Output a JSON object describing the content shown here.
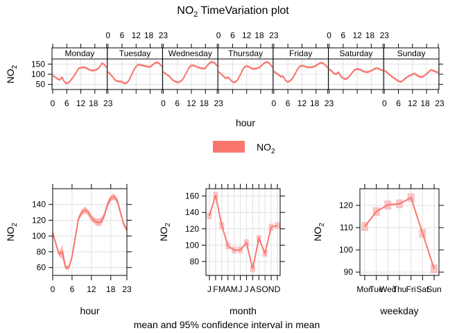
{
  "title": {
    "main": "NO",
    "sub": "2",
    "rest": " TimeVariation plot"
  },
  "footer_note": "mean and 95% confidence interval in mean",
  "colors": {
    "line": "#F8766D",
    "ci": "#F9B8B8",
    "grid": "#E0E0E0",
    "axis": "#000000"
  },
  "legend": {
    "label_main": "NO",
    "label_sub": "2",
    "swatch_color": "#F8766D"
  },
  "chart_data": [
    {
      "type": "line",
      "name": "hour-by-weekday",
      "title": "NO2 TimeVariation plot",
      "xlabel": "hour",
      "ylabel": "NO2",
      "panels": [
        "Monday",
        "Tuesday",
        "Wednesday",
        "Thursday",
        "Friday",
        "Saturday",
        "Sunday"
      ],
      "x_ticks": [
        0,
        6,
        12,
        18,
        23
      ],
      "y_ticks": [
        50,
        100,
        150
      ],
      "ylim": [
        25,
        175
      ],
      "ci_halfwidth": 6,
      "series": [
        {
          "name": "Monday",
          "values": [
            95,
            86,
            78,
            72,
            85,
            62,
            55,
            60,
            75,
            90,
            108,
            128,
            132,
            134,
            132,
            126,
            121,
            118,
            120,
            124,
            135,
            154,
            148,
            132
          ]
        },
        {
          "name": "Tuesday",
          "values": [
            112,
            100,
            88,
            72,
            66,
            64,
            63,
            55,
            58,
            70,
            95,
            120,
            138,
            148,
            146,
            142,
            140,
            137,
            136,
            145,
            155,
            158,
            152,
            138
          ]
        },
        {
          "name": "Wednesday",
          "values": [
            112,
            102,
            95,
            85,
            72,
            65,
            60,
            63,
            70,
            88,
            110,
            132,
            144,
            142,
            138,
            133,
            130,
            128,
            130,
            145,
            158,
            160,
            155,
            140
          ]
        },
        {
          "name": "Thursday",
          "values": [
            112,
            102,
            92,
            80,
            85,
            74,
            62,
            60,
            70,
            90,
            115,
            135,
            140,
            137,
            128,
            127,
            128,
            131,
            138,
            150,
            158,
            160,
            150,
            135
          ]
        },
        {
          "name": "Friday",
          "values": [
            115,
            105,
            98,
            88,
            90,
            70,
            62,
            68,
            80,
            100,
            122,
            138,
            142,
            140,
            135,
            134,
            134,
            137,
            142,
            150,
            156,
            154,
            145,
            132
          ]
        },
        {
          "name": "Saturday",
          "values": [
            125,
            116,
            105,
            100,
            110,
            90,
            80,
            76,
            82,
            95,
            110,
            122,
            126,
            124,
            118,
            113,
            110,
            112,
            118,
            124,
            130,
            128,
            122,
            118
          ]
        },
        {
          "name": "Sunday",
          "values": [
            118,
            110,
            100,
            90,
            82,
            74,
            66,
            62,
            70,
            80,
            88,
            94,
            100,
            102,
            94,
            88,
            86,
            92,
            102,
            112,
            122,
            116,
            112,
            108
          ]
        }
      ]
    },
    {
      "type": "line",
      "name": "hour",
      "xlabel": "hour",
      "ylabel": "NO2",
      "x": [
        0,
        1,
        2,
        3,
        4,
        5,
        6,
        7,
        8,
        9,
        10,
        11,
        12,
        13,
        14,
        15,
        16,
        17,
        18,
        19,
        20,
        21,
        22,
        23
      ],
      "values": [
        104,
        90,
        77,
        80,
        60,
        60,
        74,
        98,
        122,
        130,
        133,
        130,
        123,
        119,
        117,
        118,
        126,
        140,
        148,
        150,
        145,
        130,
        115,
        108
      ],
      "ci_halfwidth": [
        2,
        3,
        3,
        9,
        3,
        3,
        3,
        3,
        3,
        4,
        4,
        4,
        4,
        4,
        5,
        5,
        4,
        4,
        4,
        4,
        4,
        4,
        3,
        3
      ],
      "x_ticks": [
        0,
        6,
        12,
        18,
        23
      ],
      "y_ticks": [
        60,
        80,
        100,
        120,
        140
      ],
      "xlim": [
        0,
        23
      ],
      "ylim": [
        50,
        160
      ]
    },
    {
      "type": "line",
      "name": "month",
      "xlabel": "month",
      "ylabel": "NO2",
      "categories": [
        "J",
        "F",
        "M",
        "A",
        "M",
        "J",
        "J",
        "A",
        "S",
        "O",
        "N",
        "D"
      ],
      "values": [
        136,
        161,
        124,
        99,
        94,
        94,
        103,
        71,
        108,
        90,
        122,
        124
      ],
      "ci_halfwidth": 3,
      "y_ticks": [
        80,
        100,
        120,
        140,
        160
      ],
      "ylim": [
        63,
        169
      ]
    },
    {
      "type": "line",
      "name": "weekday",
      "xlabel": "weekday",
      "ylabel": "NO2",
      "categories": [
        "Mon",
        "Tue",
        "Wed",
        "Thu",
        "Fri",
        "Sat",
        "Sun"
      ],
      "values": [
        110.5,
        117.2,
        120.2,
        120.7,
        123.5,
        107.5,
        91.5
      ],
      "ci_halfwidth": 2,
      "y_ticks": [
        90,
        100,
        110,
        120
      ],
      "ylim": [
        88.5,
        127.5
      ]
    }
  ]
}
